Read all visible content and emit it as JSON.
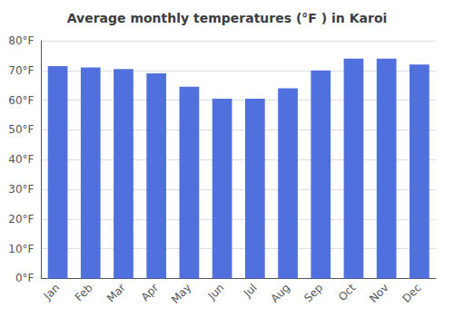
{
  "chart_data": {
    "type": "bar",
    "title": "Average monthly temperatures (°F ) in Karoi",
    "categories": [
      "Jan",
      "Feb",
      "Mar",
      "Apr",
      "May",
      "Jun",
      "Jul",
      "Aug",
      "Sep",
      "Oct",
      "Nov",
      "Dec"
    ],
    "values": [
      71.5,
      71.0,
      70.5,
      69.0,
      64.5,
      60.5,
      60.5,
      64.0,
      70.0,
      74.0,
      74.0,
      72.0
    ],
    "ylim": [
      0,
      80
    ],
    "yticks": [
      {
        "value": 0,
        "label": "0°F"
      },
      {
        "value": 10,
        "label": "10°F"
      },
      {
        "value": 20,
        "label": "20°F"
      },
      {
        "value": 30,
        "label": "30°F"
      },
      {
        "value": 40,
        "label": "40°F"
      },
      {
        "value": 50,
        "label": "50°F"
      },
      {
        "value": 60,
        "label": "60°F"
      },
      {
        "value": 70,
        "label": "70°F"
      },
      {
        "value": 80,
        "label": "80°F"
      }
    ],
    "grid": true
  }
}
